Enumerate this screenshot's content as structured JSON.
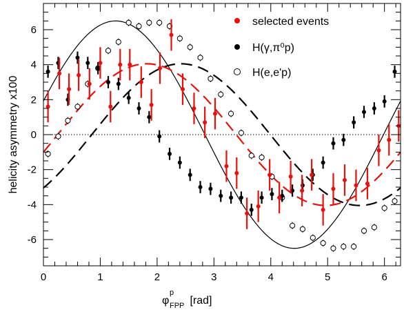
{
  "chart_data": {
    "type": "scatter",
    "title": "",
    "xlabel": "φ",
    "xlabel_sup": "p",
    "xlabel_sub": "FPP",
    "xlabel_unit": " [rad]",
    "ylabel": "helicity asymmetry  x100",
    "xlim": [
      0,
      6.283
    ],
    "ylim": [
      -7.5,
      7.5
    ],
    "x_ticks": [
      0,
      1,
      2,
      3,
      4,
      5,
      6
    ],
    "y_ticks": [
      -6,
      -4,
      -2,
      0,
      2,
      4,
      6
    ],
    "zero_line": true,
    "legend_position": "top-right",
    "series": [
      {
        "name": "selected events",
        "color": "#e8100c",
        "marker": "filled-circle",
        "x": [
          0.08,
          0.28,
          0.45,
          0.62,
          0.81,
          1.0,
          1.18,
          1.35,
          1.52,
          1.72,
          1.9,
          2.05,
          2.25,
          2.45,
          2.65,
          2.84,
          3.02,
          3.22,
          3.4,
          3.58,
          3.78,
          3.98,
          4.15,
          4.35,
          4.55,
          4.72,
          4.92,
          5.1,
          5.3,
          5.5,
          5.7,
          5.9,
          6.08,
          6.25
        ],
        "y": [
          1.6,
          3.5,
          2.6,
          3.4,
          2.9,
          4.1,
          1.6,
          4.0,
          4.0,
          3.0,
          1.7,
          3.8,
          5.7,
          2.6,
          1.5,
          0.7,
          1.2,
          -1.8,
          -2.2,
          -4.5,
          -4.1,
          -2.3,
          -3.6,
          -2.4,
          -3.2,
          -2.3,
          -4.3,
          -3.1,
          -2.6,
          -2.9,
          -2.8,
          -0.9,
          -0.3,
          0.5
        ],
        "err": [
          0.9,
          0.9,
          0.9,
          0.9,
          0.9,
          0.9,
          0.9,
          0.9,
          0.9,
          0.9,
          0.9,
          0.9,
          0.9,
          0.9,
          0.9,
          0.9,
          0.9,
          0.9,
          0.9,
          0.9,
          0.9,
          0.9,
          0.9,
          0.9,
          0.9,
          0.9,
          0.9,
          0.9,
          0.9,
          0.9,
          0.9,
          0.9,
          0.9,
          0.9
        ]
      },
      {
        "name": "H(γ,π⁰p)",
        "color": "#000000",
        "marker": "filled-circle",
        "x": [
          0.08,
          0.26,
          0.43,
          0.6,
          0.78,
          0.96,
          1.14,
          1.32,
          1.5,
          1.68,
          1.86,
          2.04,
          2.22,
          2.4,
          2.58,
          2.76,
          2.94,
          3.12,
          3.3,
          3.48,
          3.66,
          3.84,
          4.02,
          4.2,
          4.38,
          4.56,
          4.74,
          4.92,
          5.1,
          5.28,
          5.46,
          5.64,
          5.82,
          6.0,
          6.18
        ],
        "y": [
          3.6,
          4.1,
          2.0,
          4.4,
          4.1,
          3.8,
          3.0,
          2.9,
          2.1,
          1.5,
          1.0,
          -0.1,
          -1.1,
          -1.6,
          -2.3,
          -3.0,
          -3.1,
          -3.5,
          -3.6,
          -3.6,
          -4.3,
          -3.6,
          -3.4,
          -3.5,
          -3.2,
          -2.9,
          -2.3,
          -1.6,
          -0.5,
          -0.3,
          0.7,
          1.3,
          1.5,
          1.9,
          3.6
        ],
        "err": [
          0.35,
          0.35,
          0.35,
          0.35,
          0.35,
          0.35,
          0.35,
          0.35,
          0.35,
          0.35,
          0.35,
          0.35,
          0.35,
          0.35,
          0.35,
          0.35,
          0.35,
          0.35,
          0.35,
          0.35,
          0.35,
          0.35,
          0.35,
          0.35,
          0.35,
          0.35,
          0.35,
          0.35,
          0.35,
          0.35,
          0.35,
          0.35,
          0.35,
          0.35,
          0.35
        ]
      },
      {
        "name": "H(e,e'p)",
        "color": "#000000",
        "marker": "open-circle",
        "x": [
          0.08,
          0.26,
          0.43,
          0.6,
          0.78,
          0.96,
          1.14,
          1.32,
          1.5,
          1.68,
          1.86,
          2.04,
          2.22,
          2.4,
          2.58,
          2.76,
          2.94,
          3.12,
          3.3,
          3.48,
          3.66,
          3.84,
          4.02,
          4.2,
          4.38,
          4.56,
          4.74,
          4.92,
          5.1,
          5.28,
          5.46,
          5.64,
          5.82,
          6.0,
          6.18
        ],
        "y": [
          -1.1,
          -0.1,
          0.8,
          1.6,
          2.9,
          3.8,
          4.8,
          5.3,
          6.4,
          6.2,
          6.4,
          6.4,
          6.2,
          5.5,
          5.0,
          4.4,
          3.2,
          2.3,
          1.2,
          0.1,
          -1.2,
          -1.3,
          -2.4,
          -3.6,
          -5.2,
          -5.4,
          -5.9,
          -6.2,
          -6.5,
          -6.4,
          -6.4,
          -5.5,
          -5.3,
          -4.2,
          -3.8
        ]
      }
    ],
    "curves": [
      {
        "of": "H(e,e'p)",
        "color": "#000000",
        "dash": "solid",
        "amplitude": 6.5,
        "phase": 0.3
      },
      {
        "of": "H(γ,π⁰p)",
        "color": "#000000",
        "dash": "long-dash",
        "amplitude": 4.05,
        "phase": -0.85
      },
      {
        "of": "selected events",
        "color": "#e8100c",
        "dash": "long-dash",
        "amplitude": 4.05,
        "phase": -0.25
      }
    ]
  }
}
